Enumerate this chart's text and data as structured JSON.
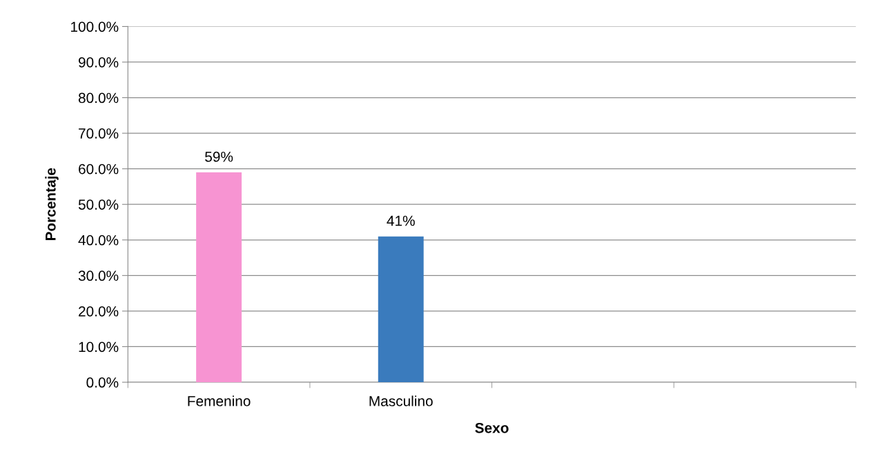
{
  "chart_data": {
    "type": "bar",
    "xlabel": "Sexo",
    "ylabel": "Porcentaje",
    "categories": [
      "Femenino",
      "Masculino",
      null,
      null
    ],
    "values": [
      59,
      41,
      null,
      null
    ],
    "colors": [
      "#f794d2",
      "#3a7bbd",
      "#f794d2",
      "#3a7bbd"
    ],
    "value_labels": [
      "59%",
      "41%",
      null,
      null
    ],
    "ylim": [
      0,
      100
    ],
    "yticks": [
      {
        "value": 0,
        "label": "0.0%"
      },
      {
        "value": 10,
        "label": "10.0%"
      },
      {
        "value": 20,
        "label": "20.0%"
      },
      {
        "value": 30,
        "label": "30.0%"
      },
      {
        "value": 40,
        "label": "40.0%"
      },
      {
        "value": 50,
        "label": "50.0%"
      },
      {
        "value": 60,
        "label": "60.0%"
      },
      {
        "value": 70,
        "label": "70.0%"
      },
      {
        "value": 80,
        "label": "80.0%"
      },
      {
        "value": 90,
        "label": "90.0%"
      },
      {
        "value": 100,
        "label": "100.0%"
      }
    ],
    "grid": "y"
  }
}
